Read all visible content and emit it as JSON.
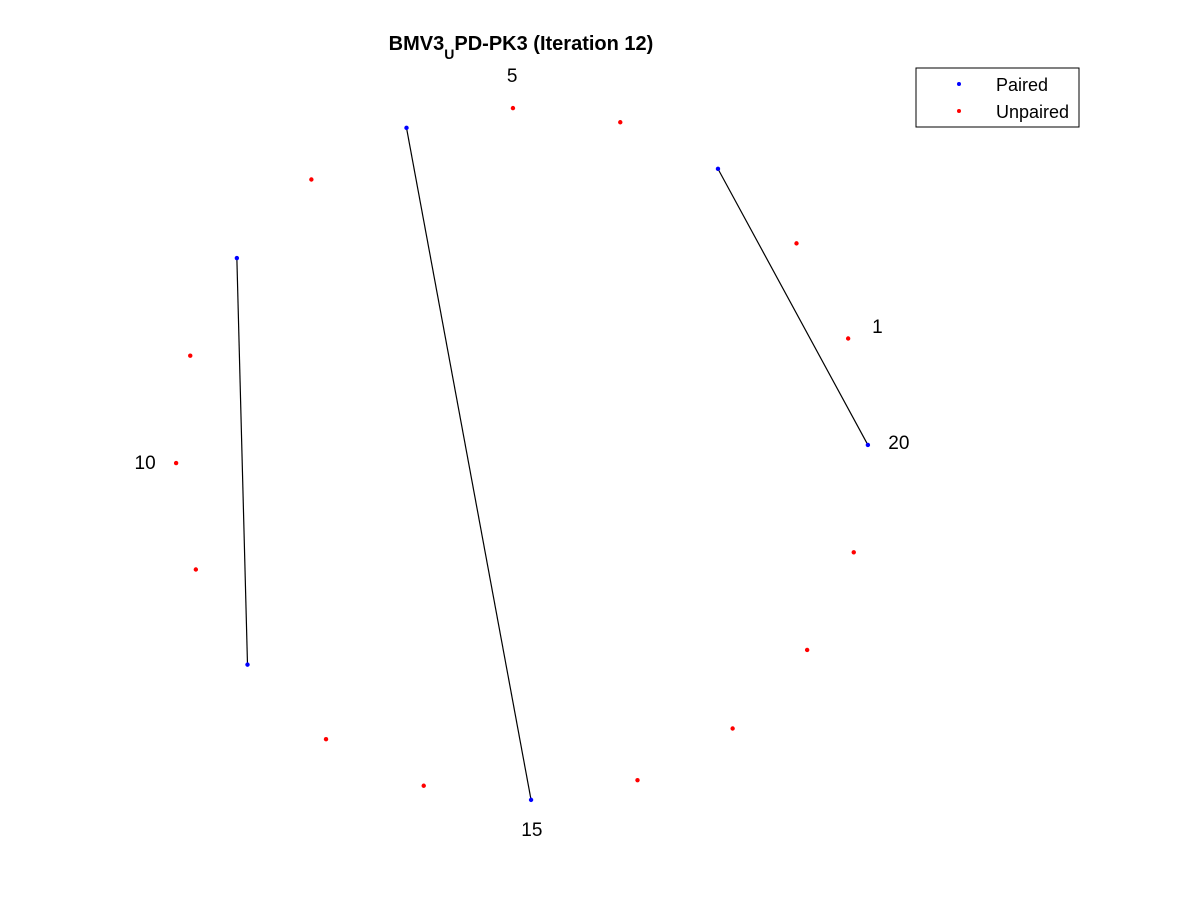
{
  "title": {
    "main": "BMV3",
    "sub": "U",
    "rest": "PD-PK3 (Iteration 12)"
  },
  "legend": [
    {
      "label": "Paired",
      "color": "#0000ff"
    },
    {
      "label": "Unpaired",
      "color": "#ff0000"
    }
  ],
  "colors": {
    "paired": "#0000ff",
    "unpaired": "#ff0000",
    "pair_line": "#000000"
  },
  "chart_data": {
    "type": "arc-diagram-circular",
    "node_count": 20,
    "title": "BMV3_U PD-PK3 (Iteration 12)",
    "numbered_nodes": [
      1,
      5,
      10,
      15,
      20
    ],
    "index_labels": [
      "1",
      "5",
      "10",
      "15",
      "20"
    ],
    "pairs": [
      [
        3,
        20
      ],
      [
        6,
        15
      ],
      [
        8,
        12
      ]
    ],
    "paired_nodes": [
      3,
      6,
      8,
      12,
      15,
      20
    ],
    "unpaired_nodes": [
      1,
      2,
      4,
      5,
      7,
      9,
      10,
      11,
      13,
      14,
      16,
      17,
      18,
      19
    ],
    "legend_position": "top-right",
    "grid": false
  }
}
